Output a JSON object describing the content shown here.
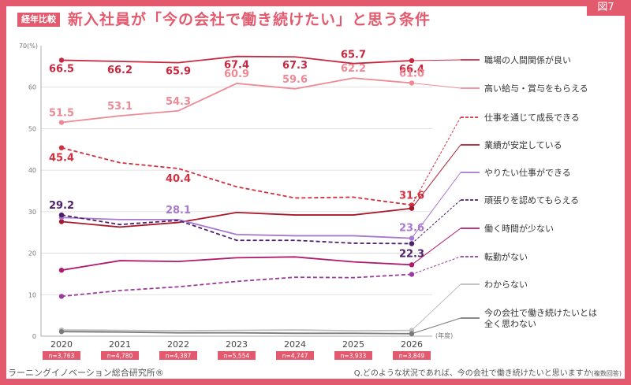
{
  "header": {
    "series_tag": "経年比較",
    "title": "新入社員が「今の会社で働き続けたい」と思う条件",
    "figure_label": "図7"
  },
  "footer": {
    "source": "ラーニングイノベーション総合研究所®",
    "question": "Q.どのような状況であれば、今の会社で働き続けたいと思いますか",
    "question_note": "(複数回答)"
  },
  "chart_data": {
    "type": "line",
    "x": [
      "2020",
      "2021",
      "2022",
      "2023",
      "2024",
      "2025",
      "2026"
    ],
    "sample_sizes": [
      "n=3,763",
      "n=4,780",
      "n=4,387",
      "n=5,554",
      "n=4,747",
      "n=3,933",
      "n=3,849"
    ],
    "y_unit_label": "70(%)",
    "x_unit_label": "(年度)",
    "ylim": [
      0,
      70
    ],
    "yticks": [
      0,
      10,
      20,
      30,
      40,
      50,
      60
    ],
    "grid": true,
    "legend_position": "right",
    "series": [
      {
        "name": "職場の人間関係が良い",
        "color": "#c8283f",
        "dash": false,
        "values": [
          66.5,
          66.2,
          65.9,
          67.4,
          67.3,
          65.7,
          66.4
        ],
        "labels": [
          "66.5",
          "66.2",
          "65.9",
          "67.4",
          "67.3",
          "65.7",
          "66.4"
        ]
      },
      {
        "name": "高い給与・賞与をもらえる",
        "color": "#ee8a96",
        "dash": false,
        "values": [
          51.5,
          53.1,
          54.3,
          60.9,
          59.6,
          62.2,
          61.0
        ],
        "labels": [
          "51.5",
          "53.1",
          "54.3",
          "60.9",
          "59.6",
          "62.2",
          "61.0"
        ]
      },
      {
        "name": "仕事を通じて成長できる",
        "color": "#d32f3f",
        "dash": true,
        "values": [
          45.4,
          41.8,
          40.4,
          36.0,
          33.3,
          33.5,
          31.6
        ],
        "labels": [
          "45.4",
          "",
          "40.4",
          "",
          "",
          "",
          "31.6"
        ]
      },
      {
        "name": "業績が安定している",
        "color": "#a8182b",
        "dash": false,
        "values": [
          27.6,
          26.3,
          27.4,
          29.8,
          29.2,
          29.2,
          30.8
        ],
        "labels": [
          "",
          "",
          "",
          "",
          "",
          "",
          ""
        ]
      },
      {
        "name": "やりたい仕事ができる",
        "color": "#a878cf",
        "dash": false,
        "values": [
          28.6,
          28.1,
          28.1,
          24.5,
          24.2,
          24.2,
          23.6
        ],
        "labels": [
          "",
          "",
          "28.1",
          "",
          "",
          "",
          "23.6"
        ]
      },
      {
        "name": "頑張りを認めてもらえる",
        "color": "#4e1f6b",
        "dash": true,
        "values": [
          29.2,
          26.9,
          27.9,
          23.1,
          23.1,
          22.4,
          22.3
        ],
        "labels": [
          "29.2",
          "",
          "",
          "",
          "",
          "",
          "22.3"
        ]
      },
      {
        "name": "働く時間が少ない",
        "color": "#b01a6e",
        "dash": false,
        "values": [
          15.9,
          18.2,
          18.0,
          18.9,
          19.1,
          17.9,
          17.2
        ],
        "labels": [
          "",
          "",
          "",
          "",
          "",
          "",
          ""
        ]
      },
      {
        "name": "転勤がない",
        "color": "#9d3a9f",
        "dash": true,
        "values": [
          9.6,
          11.0,
          11.9,
          13.2,
          14.2,
          14.1,
          14.9
        ],
        "labels": [
          "",
          "",
          "",
          "",
          "",
          "",
          ""
        ]
      },
      {
        "name": "わからない",
        "color": "#bdbdbd",
        "dash": false,
        "values": [
          1.5,
          1.4,
          1.3,
          1.4,
          1.5,
          1.3,
          1.4
        ],
        "labels": [
          "",
          "",
          "",
          "",
          "",
          "",
          ""
        ]
      },
      {
        "name": "今の会社で働き続けたいとは\n全く思わない",
        "color": "#7a7a7a",
        "dash": false,
        "values": [
          1.1,
          1.0,
          0.8,
          0.8,
          0.7,
          0.7,
          0.6
        ],
        "labels": [
          "",
          "",
          "",
          "",
          "",
          "",
          ""
        ]
      }
    ]
  }
}
